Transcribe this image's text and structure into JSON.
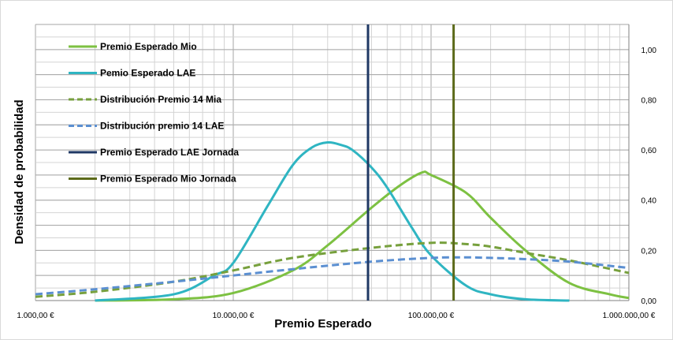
{
  "chart_data": {
    "type": "line",
    "title": "",
    "xlabel": "Premio Esperado",
    "ylabel": "Densidad de probabilidad",
    "x_scale": "log",
    "xlim": [
      1000,
      1000000
    ],
    "ylim": [
      0,
      1.1
    ],
    "x_ticks": [
      1000,
      10000,
      100000,
      1000000
    ],
    "x_tick_labels": [
      "1.000,00 €",
      "10.000,00 €",
      "100.000,00 €",
      "1.000.000,00 €"
    ],
    "y_ticks": [
      0,
      0.2,
      0.4,
      0.6,
      0.8,
      1.0
    ],
    "y_tick_labels": [
      "0,00",
      "0,20",
      "0,40",
      "0,60",
      "0,80",
      "1,00"
    ],
    "y_axis_side": "right",
    "grid": true,
    "legend_position": "top-left",
    "series": [
      {
        "name": "Premio Esperado Mio",
        "color": "#7dc142",
        "style": "solid",
        "x": [
          2000,
          5000,
          10000,
          20000,
          30000,
          50000,
          70000,
          90000,
          100000,
          150000,
          200000,
          300000,
          500000,
          800000,
          1000000
        ],
        "y": [
          0.0,
          0.005,
          0.03,
          0.12,
          0.22,
          0.37,
          0.46,
          0.51,
          0.5,
          0.43,
          0.33,
          0.2,
          0.07,
          0.025,
          0.01
        ]
      },
      {
        "name": "Pemio Esperado LAE",
        "color": "#2fb5c2",
        "style": "solid",
        "x": [
          2000,
          5000,
          8000,
          10000,
          15000,
          20000,
          25000,
          30000,
          35000,
          40000,
          50000,
          60000,
          80000,
          100000,
          150000,
          200000,
          300000,
          500000
        ],
        "y": [
          0.0,
          0.025,
          0.1,
          0.15,
          0.38,
          0.54,
          0.61,
          0.63,
          0.62,
          0.6,
          0.53,
          0.45,
          0.29,
          0.18,
          0.06,
          0.025,
          0.005,
          0.0
        ]
      },
      {
        "name": "Distribución Premio 14 Mia",
        "color": "#77a03d",
        "style": "dashed",
        "x": [
          1000,
          2000,
          5000,
          10000,
          20000,
          50000,
          100000,
          150000,
          200000,
          300000,
          500000,
          1000000
        ],
        "y": [
          0.015,
          0.035,
          0.075,
          0.12,
          0.17,
          0.21,
          0.23,
          0.225,
          0.215,
          0.19,
          0.16,
          0.11
        ]
      },
      {
        "name": "Distribución premio 14 LAE",
        "color": "#5b8fd1",
        "style": "dashed",
        "x": [
          1000,
          2000,
          5000,
          10000,
          20000,
          50000,
          100000,
          150000,
          200000,
          300000,
          500000,
          1000000
        ],
        "y": [
          0.025,
          0.045,
          0.075,
          0.1,
          0.125,
          0.155,
          0.17,
          0.172,
          0.17,
          0.165,
          0.155,
          0.13
        ]
      },
      {
        "name": "Premio Esperado LAE Jornada",
        "color": "#1f3864",
        "style": "vline",
        "x_value": 48000
      },
      {
        "name": "Premio Esperado Mio Jornada",
        "color": "#5c6a1a",
        "style": "vline",
        "x_value": 130000
      }
    ]
  }
}
